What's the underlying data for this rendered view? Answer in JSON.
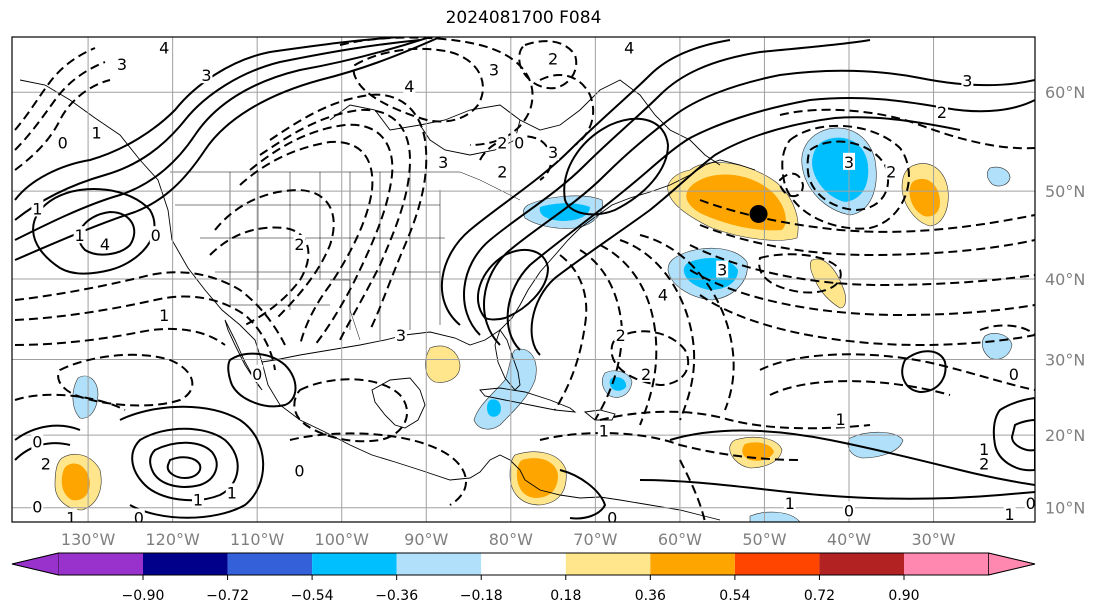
{
  "title": "2024081700 F084",
  "map": {
    "projection": "Miller cylindrical",
    "extent": {
      "lon": [
        -139,
        -18
      ],
      "lat": [
        8,
        65
      ]
    },
    "lat_ticks": [
      {
        "v": 10,
        "label": "10°N"
      },
      {
        "v": 20,
        "label": "20°N"
      },
      {
        "v": 30,
        "label": "30°N"
      },
      {
        "v": 40,
        "label": "40°N"
      },
      {
        "v": 50,
        "label": "50°N"
      },
      {
        "v": 60,
        "label": "60°N"
      }
    ],
    "lon_ticks": [
      {
        "v": -130,
        "label": "130°W"
      },
      {
        "v": -120,
        "label": "120°W"
      },
      {
        "v": -110,
        "label": "110°W"
      },
      {
        "v": -100,
        "label": "100°W"
      },
      {
        "v": -90,
        "label": "90°W"
      },
      {
        "v": -80,
        "label": "80°W"
      },
      {
        "v": -70,
        "label": "70°W"
      },
      {
        "v": -60,
        "label": "60°W"
      },
      {
        "v": -50,
        "label": "50°W"
      },
      {
        "v": -40,
        "label": "40°W"
      },
      {
        "v": -30,
        "label": "30°W"
      }
    ],
    "grid": true,
    "marker": {
      "name": "black-dot-marker",
      "lon": -50.7,
      "lat": 47.5
    }
  },
  "colorbar": {
    "extend": "both",
    "ticks": [
      "−0.90",
      "−0.72",
      "−0.54",
      "−0.36",
      "−0.18",
      "0.18",
      "0.36",
      "0.54",
      "0.72",
      "0.90"
    ],
    "colors": [
      "#9932cc",
      "#00008b",
      "#3461d9",
      "#00bfff",
      "#b0e0fa",
      "#ffffff",
      "#ffe68c",
      "#ffa500",
      "#ff4500",
      "#b22222",
      "#ff88b0"
    ]
  },
  "contour_labels": [
    {
      "t": "3",
      "lon": -116,
      "lat": 61.5
    },
    {
      "t": "4",
      "lon": -121,
      "lat": 64
    },
    {
      "t": "3",
      "lon": -126,
      "lat": 62.5
    },
    {
      "t": "1",
      "lon": -129,
      "lat": 56
    },
    {
      "t": "0",
      "lon": -133,
      "lat": 55
    },
    {
      "t": "1",
      "lon": -136,
      "lat": 48
    },
    {
      "t": "1",
      "lon": -131,
      "lat": 45
    },
    {
      "t": "4",
      "lon": -128,
      "lat": 44
    },
    {
      "t": "0",
      "lon": -122,
      "lat": 45
    },
    {
      "t": "4",
      "lon": -92,
      "lat": 60.5
    },
    {
      "t": "3",
      "lon": -82,
      "lat": 62
    },
    {
      "t": "2",
      "lon": -75,
      "lat": 63
    },
    {
      "t": "4",
      "lon": -66,
      "lat": 64
    },
    {
      "t": "3",
      "lon": -88,
      "lat": 53
    },
    {
      "t": "2",
      "lon": -81,
      "lat": 52
    },
    {
      "t": "2",
      "lon": -81,
      "lat": 55
    },
    {
      "t": "0",
      "lon": -79,
      "lat": 55
    },
    {
      "t": "3",
      "lon": -75,
      "lat": 54
    },
    {
      "t": "2",
      "lon": -105,
      "lat": 44
    },
    {
      "t": "3",
      "lon": -93,
      "lat": 33
    },
    {
      "t": "1",
      "lon": -121,
      "lat": 35.5
    },
    {
      "t": "0",
      "lon": -110,
      "lat": 28
    },
    {
      "t": "4",
      "lon": -62,
      "lat": 38
    },
    {
      "t": "3",
      "lon": -55,
      "lat": 41
    },
    {
      "t": "2",
      "lon": -67,
      "lat": 33
    },
    {
      "t": "2",
      "lon": -64,
      "lat": 28
    },
    {
      "t": "1",
      "lon": -69,
      "lat": 20.5
    },
    {
      "t": "1",
      "lon": -41,
      "lat": 22
    },
    {
      "t": "3",
      "lon": -26,
      "lat": 61
    },
    {
      "t": "2",
      "lon": -29,
      "lat": 58
    },
    {
      "t": "3",
      "lon": -40,
      "lat": 53
    },
    {
      "t": "2",
      "lon": -35,
      "lat": 52
    },
    {
      "t": "2",
      "lon": -24,
      "lat": 16
    },
    {
      "t": "1",
      "lon": -24,
      "lat": 18
    },
    {
      "t": "0",
      "lon": -18.5,
      "lat": 10.5
    },
    {
      "t": "1",
      "lon": -21,
      "lat": 9
    },
    {
      "t": "1",
      "lon": -47,
      "lat": 10.5
    },
    {
      "t": "0",
      "lon": -40,
      "lat": 9.5
    },
    {
      "t": "0",
      "lon": -68,
      "lat": 8.5
    },
    {
      "t": "2",
      "lon": -135,
      "lat": 16
    },
    {
      "t": "0",
      "lon": -136,
      "lat": 10
    },
    {
      "t": "1",
      "lon": -132,
      "lat": 8.5
    },
    {
      "t": "0",
      "lon": -124,
      "lat": 8.5
    },
    {
      "t": "0",
      "lon": -136,
      "lat": 19
    },
    {
      "t": "0",
      "lon": -105,
      "lat": 15
    },
    {
      "t": "0",
      "lon": -20.5,
      "lat": 28
    },
    {
      "t": "1",
      "lon": -113,
      "lat": 12
    },
    {
      "t": "1",
      "lon": -117,
      "lat": 11
    }
  ]
}
